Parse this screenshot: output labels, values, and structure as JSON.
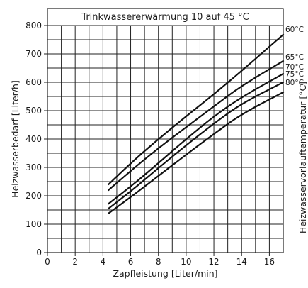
{
  "chart_data": {
    "type": "line",
    "title": "Trinkwassererwärmung 10 auf 45 °C",
    "xlabel": "Zapfleistung [Liter/min]",
    "ylabel": "Heizwasserbedarf [Liter/h]",
    "y2label": "Heizwasservorlauftemperatur [°C]",
    "xlim": [
      0,
      17
    ],
    "ylim": [
      0,
      800
    ],
    "xticks": [
      0,
      2,
      4,
      6,
      8,
      10,
      12,
      14,
      16
    ],
    "yticks": [
      0,
      100,
      200,
      300,
      400,
      500,
      600,
      700,
      800
    ],
    "x_minor_step": 1,
    "y_minor_step": 50,
    "grid": true,
    "series": [
      {
        "name": "60°C",
        "x": [
          4.4,
          6,
          8,
          10,
          12,
          14,
          17
        ],
        "y": [
          240,
          315,
          400,
          480,
          558,
          640,
          768
        ]
      },
      {
        "name": "65°C",
        "x": [
          4.4,
          6,
          8,
          10,
          12,
          14,
          17
        ],
        "y": [
          220,
          288,
          368,
          442,
          515,
          588,
          675
        ]
      },
      {
        "name": "70°C",
        "x": [
          4.4,
          6,
          8,
          10,
          12,
          14,
          17
        ],
        "y": [
          172,
          232,
          315,
          400,
          480,
          548,
          630
        ]
      },
      {
        "name": "75°C",
        "x": [
          4.4,
          6,
          8,
          10,
          12,
          14,
          17
        ],
        "y": [
          155,
          215,
          298,
          378,
          455,
          525,
          600
        ]
      },
      {
        "name": "80°C",
        "x": [
          4.4,
          6,
          8,
          10,
          12,
          14,
          17
        ],
        "y": [
          138,
          195,
          270,
          345,
          418,
          488,
          565
        ]
      }
    ]
  }
}
